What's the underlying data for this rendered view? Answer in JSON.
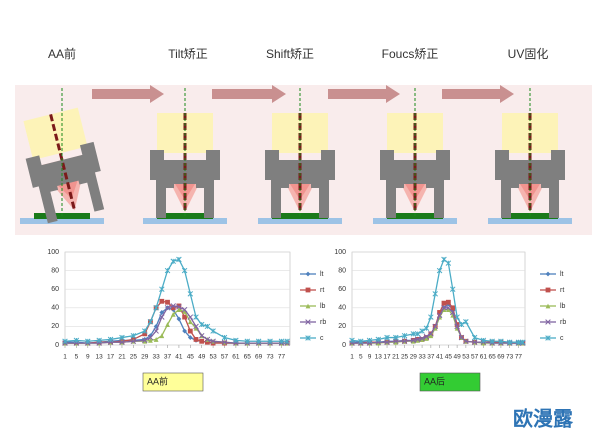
{
  "stages": [
    "AA前",
    "Tilt矫正",
    "Shift矫正",
    "Foucs矫正",
    "UV固化"
  ],
  "watermark": "欧漫露",
  "chart_data": [
    {
      "type": "line",
      "caption": "AA前",
      "caption_color": "#ffff99",
      "x": [
        1,
        5,
        9,
        13,
        17,
        21,
        25,
        29,
        31,
        33,
        35,
        37,
        39,
        41,
        43,
        45,
        47,
        49,
        51,
        53,
        57,
        61,
        65,
        69,
        73,
        77,
        79
      ],
      "xlim": [
        1,
        80
      ],
      "xticks": [
        1,
        5,
        9,
        13,
        17,
        21,
        25,
        29,
        33,
        37,
        41,
        45,
        49,
        53,
        57,
        61,
        65,
        69,
        73,
        77
      ],
      "ylim": [
        0,
        100
      ],
      "yticks": [
        0,
        20,
        40,
        60,
        80,
        100
      ],
      "grid": true,
      "series": [
        {
          "name": "lt",
          "color": "#4f81bd",
          "values": [
            3,
            3,
            2,
            3,
            4,
            5,
            5,
            6,
            10,
            20,
            35,
            40,
            38,
            28,
            15,
            8,
            5,
            4,
            3,
            3,
            2,
            2,
            2,
            2,
            2,
            2,
            2
          ]
        },
        {
          "name": "rt",
          "color": "#c0504d",
          "values": [
            2,
            2,
            2,
            3,
            3,
            4,
            6,
            12,
            25,
            40,
            47,
            46,
            40,
            42,
            30,
            15,
            6,
            4,
            3,
            2,
            2,
            2,
            2,
            2,
            2,
            2,
            2
          ]
        },
        {
          "name": "lb",
          "color": "#9bbb59",
          "values": [
            2,
            2,
            2,
            2,
            3,
            3,
            4,
            4,
            5,
            6,
            10,
            22,
            33,
            38,
            36,
            25,
            18,
            10,
            6,
            4,
            3,
            2,
            2,
            2,
            2,
            2,
            2
          ]
        },
        {
          "name": "rb",
          "color": "#8064a2",
          "values": [
            2,
            2,
            2,
            2,
            3,
            3,
            4,
            5,
            8,
            15,
            30,
            40,
            42,
            41,
            38,
            30,
            20,
            10,
            6,
            4,
            3,
            2,
            2,
            2,
            2,
            2,
            2
          ]
        },
        {
          "name": "c",
          "color": "#4bacc6",
          "values": [
            4,
            5,
            4,
            5,
            6,
            8,
            10,
            15,
            25,
            40,
            60,
            80,
            90,
            92,
            80,
            55,
            30,
            22,
            20,
            15,
            8,
            5,
            4,
            4,
            4,
            4,
            4
          ]
        }
      ]
    },
    {
      "type": "line",
      "caption": "AA后",
      "caption_color": "#33cc33",
      "x": [
        1,
        5,
        9,
        13,
        17,
        21,
        25,
        29,
        31,
        33,
        35,
        37,
        39,
        41,
        43,
        45,
        47,
        49,
        51,
        53,
        57,
        61,
        65,
        69,
        73,
        77,
        79
      ],
      "xlim": [
        1,
        80
      ],
      "xticks": [
        1,
        5,
        9,
        13,
        17,
        21,
        25,
        29,
        33,
        37,
        41,
        45,
        49,
        53,
        57,
        61,
        65,
        69,
        73,
        77
      ],
      "ylim": [
        0,
        100
      ],
      "yticks": [
        0,
        20,
        40,
        60,
        80,
        100
      ],
      "grid": true,
      "series": [
        {
          "name": "lt",
          "color": "#4f81bd",
          "values": [
            3,
            3,
            3,
            3,
            4,
            4,
            5,
            5,
            5,
            6,
            8,
            10,
            18,
            30,
            40,
            44,
            38,
            20,
            8,
            4,
            3,
            3,
            3,
            3,
            3,
            3,
            3
          ]
        },
        {
          "name": "rt",
          "color": "#c0504d",
          "values": [
            2,
            2,
            3,
            3,
            3,
            4,
            4,
            5,
            6,
            6,
            8,
            12,
            20,
            35,
            45,
            46,
            40,
            22,
            8,
            4,
            3,
            3,
            3,
            3,
            2,
            2,
            2
          ]
        },
        {
          "name": "lb",
          "color": "#9bbb59",
          "values": [
            2,
            2,
            2,
            2,
            3,
            3,
            4,
            4,
            5,
            6,
            7,
            10,
            18,
            30,
            38,
            38,
            32,
            18,
            8,
            4,
            3,
            2,
            2,
            2,
            2,
            2,
            2
          ]
        },
        {
          "name": "rb",
          "color": "#8064a2",
          "values": [
            2,
            2,
            2,
            3,
            3,
            4,
            4,
            5,
            6,
            7,
            9,
            12,
            20,
            32,
            40,
            40,
            35,
            20,
            8,
            4,
            3,
            3,
            2,
            2,
            2,
            2,
            2
          ]
        },
        {
          "name": "c",
          "color": "#4bacc6",
          "values": [
            5,
            4,
            5,
            6,
            8,
            8,
            10,
            12,
            12,
            15,
            18,
            30,
            55,
            80,
            92,
            88,
            60,
            30,
            22,
            25,
            8,
            5,
            4,
            4,
            3,
            3,
            3
          ]
        }
      ]
    }
  ]
}
